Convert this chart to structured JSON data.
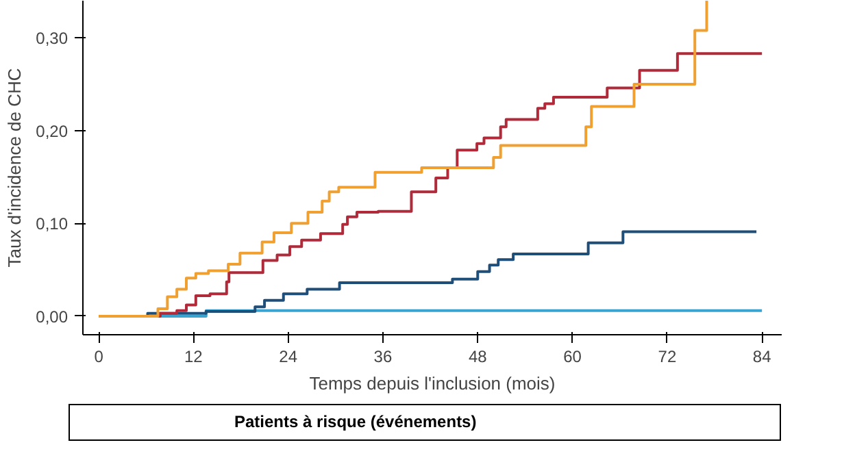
{
  "chart_data": {
    "type": "step",
    "xlabel": "Temps depuis l'inclusion (mois)",
    "ylabel": "Taux d'incidence de CHC",
    "xlim": [
      -2,
      86.5
    ],
    "ylim": [
      -0.02,
      0.34
    ],
    "xticks": [
      0,
      12,
      24,
      36,
      48,
      60,
      72,
      84
    ],
    "yticks": [
      {
        "value": 0,
        "label": "0,00"
      },
      {
        "value": 0.1,
        "label": "0,10"
      },
      {
        "value": 0.2,
        "label": "0,20"
      },
      {
        "value": 0.3,
        "label": "0,30"
      }
    ],
    "grid": false,
    "marker": "none",
    "line_style": "solid",
    "annotations": [
      "Patients à risque (événements)"
    ],
    "series": [
      {
        "color": "#3ba3d0",
        "x": [
          0,
          13.6,
          84
        ],
        "values": [
          0,
          0.006,
          0.006
        ]
      },
      {
        "color": "#1f4e79",
        "x": [
          0,
          6.2,
          13.6,
          19.8,
          21.0,
          23.4,
          26.4,
          30.5,
          44.8,
          48.0,
          49.5,
          50.6,
          52.5,
          62.0,
          66.4,
          83.3
        ],
        "values": [
          0,
          0.003,
          0.005,
          0.01,
          0.017,
          0.024,
          0.029,
          0.036,
          0.04,
          0.048,
          0.055,
          0.061,
          0.067,
          0.079,
          0.091,
          0.091
        ]
      },
      {
        "color": "#b02a3a",
        "x": [
          0,
          7.8,
          9.9,
          11.1,
          12.3,
          14.1,
          16.2,
          16.5,
          20.8,
          22.6,
          24.2,
          25.7,
          28.1,
          30.9,
          31.5,
          32.7,
          35.4,
          39.6,
          42.7,
          44.2,
          45.4,
          47.9,
          48.8,
          50.9,
          51.6,
          55.6,
          56.5,
          57.6,
          64.4,
          68.5,
          73.3,
          84.0
        ],
        "values": [
          0,
          0.003,
          0.006,
          0.012,
          0.022,
          0.024,
          0.037,
          0.047,
          0.06,
          0.066,
          0.075,
          0.082,
          0.089,
          0.099,
          0.107,
          0.112,
          0.113,
          0.134,
          0.149,
          0.16,
          0.179,
          0.186,
          0.192,
          0.204,
          0.212,
          0.224,
          0.229,
          0.236,
          0.246,
          0.265,
          0.283,
          0.283
        ]
      },
      {
        "color": "#f0a030",
        "x": [
          0,
          7.5,
          8.7,
          9.9,
          11.1,
          12.3,
          13.9,
          16.4,
          17.9,
          20.7,
          22.2,
          24.4,
          26.5,
          28.3,
          29.2,
          30.4,
          35.0,
          40.9,
          50.0,
          50.9,
          61.7,
          62.4,
          67.8,
          75.5,
          77.0
        ],
        "values": [
          0,
          0.008,
          0.021,
          0.029,
          0.041,
          0.046,
          0.049,
          0.056,
          0.068,
          0.08,
          0.09,
          0.1,
          0.112,
          0.124,
          0.134,
          0.139,
          0.155,
          0.16,
          0.171,
          0.184,
          0.204,
          0.226,
          0.25,
          0.308,
          0.34
        ]
      }
    ]
  }
}
